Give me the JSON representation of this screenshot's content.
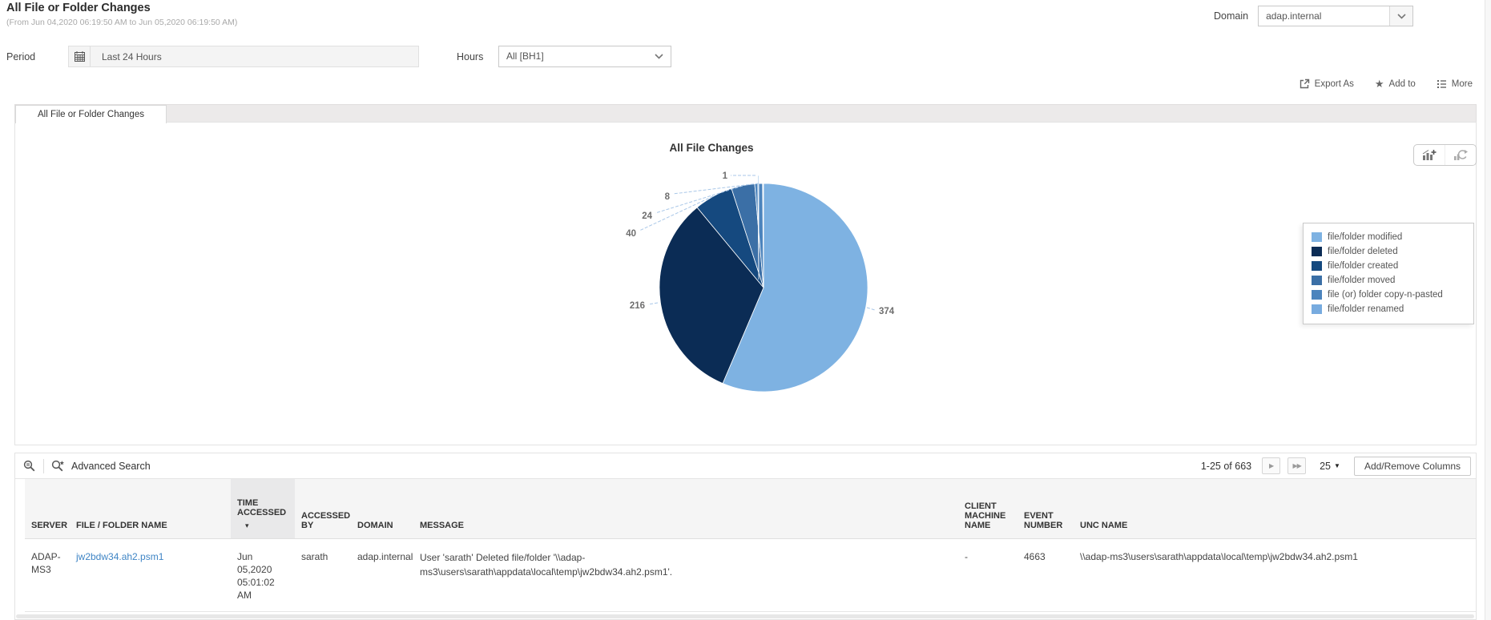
{
  "header": {
    "title": "All File or Folder Changes",
    "subtitle": "(From Jun 04,2020 06:19:50 AM to Jun 05,2020 06:19:50 AM)",
    "domain_label": "Domain",
    "domain_value": "adap.internal"
  },
  "filters": {
    "period_label": "Period",
    "period_value": "Last 24 Hours",
    "hours_label": "Hours",
    "hours_value": "All [BH1]"
  },
  "actions": {
    "export_as": "Export As",
    "add_to": "Add to",
    "more": "More"
  },
  "tabs": [
    {
      "label": "All File or Folder Changes",
      "active": true
    }
  ],
  "chart_data": {
    "type": "pie",
    "title": "All File Changes",
    "total": 663,
    "start_angle_deg": 0,
    "direction": "clockwise",
    "legend_position": "right",
    "series": [
      {
        "label": "file/folder modified",
        "value": 374,
        "color": "#7EB2E2"
      },
      {
        "label": "file/folder deleted",
        "value": 216,
        "color": "#0B2C55"
      },
      {
        "label": "file/folder created",
        "value": 40,
        "color": "#15497F"
      },
      {
        "label": "file/folder moved",
        "value": 24,
        "color": "#3B6FA6"
      },
      {
        "label": "file (or) folder copy-n-pasted",
        "value": 8,
        "color": "#4C84BD"
      },
      {
        "label": "file/folder renamed",
        "value": 1,
        "color": "#77ABDF"
      }
    ]
  },
  "icons": {
    "star": "★",
    "next_page": "▶",
    "last_page": "▶▶",
    "sort_desc": "▾",
    "page_size_caret": "▼"
  },
  "table": {
    "advanced_search_label": "Advanced Search",
    "pagination": {
      "range": "1-25 of 663",
      "page_size": "25",
      "add_remove_columns": "Add/Remove Columns"
    },
    "columns": [
      "SERVER",
      "FILE / FOLDER NAME",
      "TIME ACCESSED",
      "ACCESSED BY",
      "DOMAIN",
      "MESSAGE",
      "CLIENT MACHINE NAME",
      "EVENT NUMBER",
      "UNC NAME"
    ],
    "sorted_column": "TIME ACCESSED",
    "rows": [
      {
        "server": "ADAP-MS3",
        "file_name": "jw2bdw34.ah2.psm1",
        "time_accessed": "Jun 05,2020 05:01:02 AM",
        "accessed_by": "sarath",
        "domain": "adap.internal",
        "message": "User 'sarath' Deleted file/folder '\\\\adap-ms3\\users\\sarath\\appdata\\local\\temp\\jw2bdw34.ah2.psm1'.",
        "client_machine_name": "-",
        "event_number": "4663",
        "unc_name": "\\\\adap-ms3\\users\\sarath\\appdata\\local\\temp\\jw2bdw34.ah2.psm1"
      }
    ]
  }
}
